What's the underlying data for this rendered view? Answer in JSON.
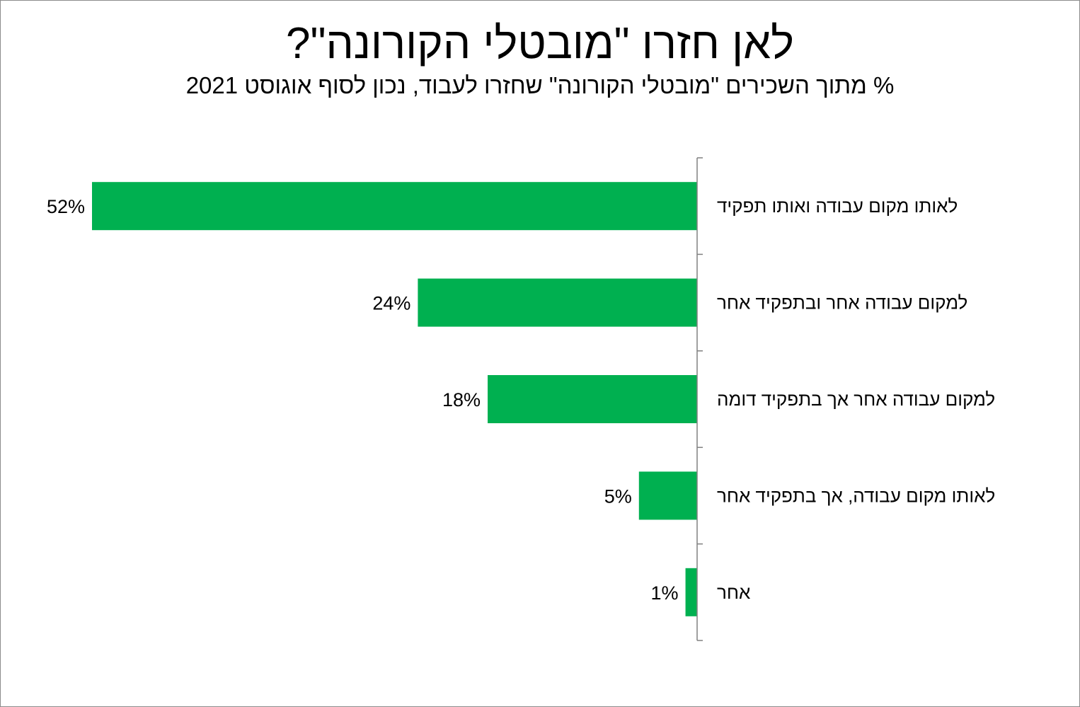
{
  "chart_data": {
    "type": "bar",
    "orientation": "horizontal",
    "title": "לאן חזרו \"מובטלי הקורונה\"?",
    "subtitle": "% מתוך השכירים \"מובטלי הקורונה\" שחזרו לעבוד, נכון לסוף אוגוסט 2021",
    "categories": [
      "לאותו מקום עבודה ואותו תפקיד",
      "למקום עבודה אחר ובתפקיד אחר",
      "למקום עבודה אחר אך בתפקיד דומה",
      "לאותו מקום עבודה, אך בתפקיד אחר",
      "אחר"
    ],
    "values": [
      52,
      24,
      18,
      5,
      1
    ],
    "value_labels": [
      "52%",
      "24%",
      "18%",
      "5%",
      "1%"
    ],
    "unit": "%",
    "xlim": [
      0,
      52
    ],
    "bar_color": "#00b050",
    "axis_color": "#808080",
    "grid": false,
    "legend": "none"
  }
}
